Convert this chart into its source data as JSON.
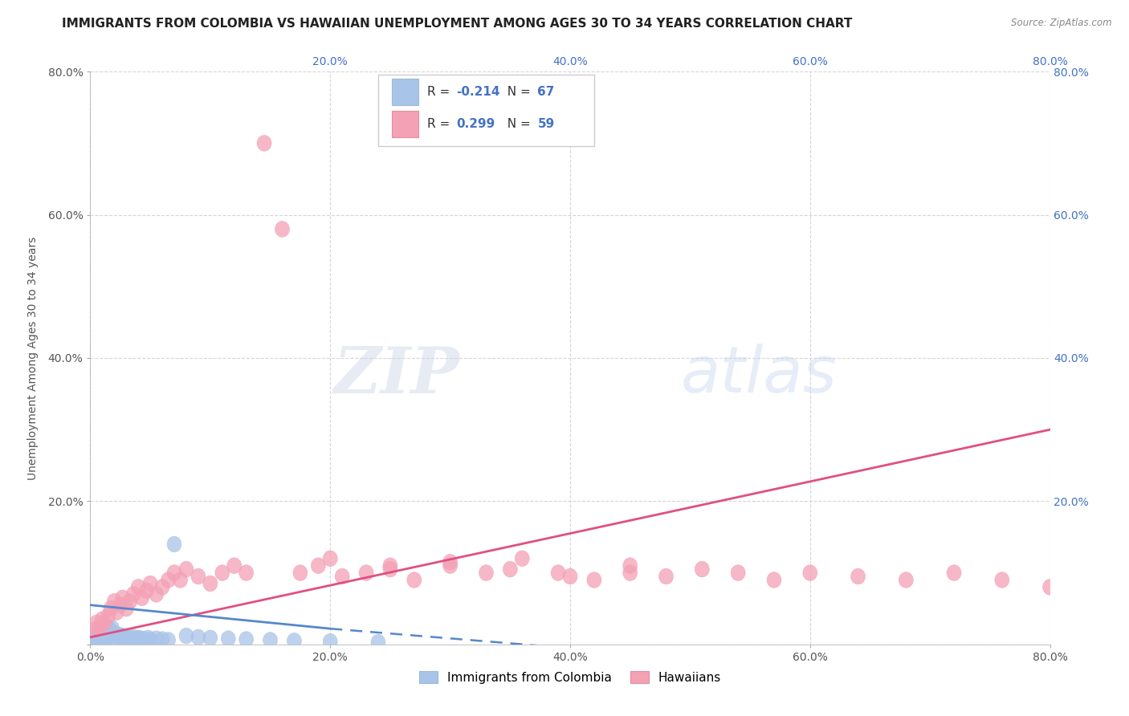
{
  "title": "IMMIGRANTS FROM COLOMBIA VS HAWAIIAN UNEMPLOYMENT AMONG AGES 30 TO 34 YEARS CORRELATION CHART",
  "source": "Source: ZipAtlas.com",
  "ylabel": "Unemployment Among Ages 30 to 34 years",
  "xlim": [
    0,
    0.8
  ],
  "ylim": [
    0,
    0.8
  ],
  "xticks": [
    0.0,
    0.2,
    0.4,
    0.6,
    0.8
  ],
  "yticks": [
    0.0,
    0.2,
    0.4,
    0.6,
    0.8
  ],
  "xticklabels": [
    "0.0%",
    "20.0%",
    "40.0%",
    "60.0%",
    "80.0%"
  ],
  "yticklabels": [
    "",
    "20.0%",
    "40.0%",
    "60.0%",
    "80.0%"
  ],
  "right_yticklabels": [
    "",
    "20.0%",
    "40.0%",
    "60.0%",
    "80.0%"
  ],
  "top_xticklabels": [
    "",
    "20.0%",
    "40.0%",
    "60.0%",
    "80.0%"
  ],
  "legend_labels": [
    "Immigrants from Colombia",
    "Hawaiians"
  ],
  "R1": -0.214,
  "N1": 67,
  "R2": 0.299,
  "N2": 59,
  "color1": "#a8c4e8",
  "color2": "#f4a0b5",
  "line_color1": "#5588cc",
  "line_color2": "#e05080",
  "watermark_zip": "ZIP",
  "watermark_atlas": "atlas",
  "background_color": "#ffffff",
  "grid_color": "#cccccc",
  "title_fontsize": 11,
  "axis_label_fontsize": 10,
  "tick_fontsize": 10,
  "blue_tick_color": "#4472c4",
  "scatter1_x": [
    0.002,
    0.003,
    0.004,
    0.005,
    0.005,
    0.006,
    0.006,
    0.007,
    0.007,
    0.008,
    0.008,
    0.009,
    0.009,
    0.01,
    0.01,
    0.01,
    0.011,
    0.011,
    0.012,
    0.012,
    0.013,
    0.013,
    0.014,
    0.014,
    0.015,
    0.015,
    0.016,
    0.016,
    0.017,
    0.017,
    0.018,
    0.018,
    0.019,
    0.02,
    0.02,
    0.021,
    0.022,
    0.023,
    0.024,
    0.025,
    0.026,
    0.027,
    0.028,
    0.029,
    0.03,
    0.032,
    0.034,
    0.036,
    0.038,
    0.04,
    0.042,
    0.045,
    0.048,
    0.05,
    0.055,
    0.06,
    0.065,
    0.07,
    0.08,
    0.09,
    0.1,
    0.115,
    0.13,
    0.15,
    0.17,
    0.2,
    0.24
  ],
  "scatter1_y": [
    0.005,
    0.008,
    0.006,
    0.01,
    0.012,
    0.007,
    0.015,
    0.009,
    0.013,
    0.011,
    0.016,
    0.008,
    0.014,
    0.01,
    0.012,
    0.018,
    0.009,
    0.015,
    0.011,
    0.017,
    0.013,
    0.019,
    0.01,
    0.016,
    0.012,
    0.02,
    0.014,
    0.022,
    0.011,
    0.018,
    0.015,
    0.023,
    0.013,
    0.01,
    0.016,
    0.012,
    0.014,
    0.011,
    0.013,
    0.01,
    0.012,
    0.009,
    0.011,
    0.008,
    0.01,
    0.009,
    0.008,
    0.01,
    0.007,
    0.009,
    0.008,
    0.007,
    0.009,
    0.006,
    0.008,
    0.007,
    0.006,
    0.14,
    0.012,
    0.01,
    0.009,
    0.008,
    0.007,
    0.006,
    0.005,
    0.004,
    0.003
  ],
  "scatter2_x": [
    0.003,
    0.005,
    0.008,
    0.01,
    0.012,
    0.015,
    0.017,
    0.02,
    0.022,
    0.025,
    0.027,
    0.03,
    0.033,
    0.036,
    0.04,
    0.043,
    0.047,
    0.05,
    0.055,
    0.06,
    0.065,
    0.07,
    0.075,
    0.08,
    0.09,
    0.1,
    0.11,
    0.12,
    0.13,
    0.145,
    0.16,
    0.175,
    0.19,
    0.21,
    0.23,
    0.25,
    0.27,
    0.3,
    0.33,
    0.36,
    0.39,
    0.42,
    0.45,
    0.48,
    0.51,
    0.54,
    0.57,
    0.6,
    0.64,
    0.68,
    0.72,
    0.76,
    0.8,
    0.2,
    0.25,
    0.3,
    0.35,
    0.4,
    0.45
  ],
  "scatter2_y": [
    0.02,
    0.03,
    0.025,
    0.035,
    0.03,
    0.04,
    0.05,
    0.06,
    0.045,
    0.055,
    0.065,
    0.05,
    0.06,
    0.07,
    0.08,
    0.065,
    0.075,
    0.085,
    0.07,
    0.08,
    0.09,
    0.1,
    0.09,
    0.105,
    0.095,
    0.085,
    0.1,
    0.11,
    0.1,
    0.7,
    0.58,
    0.1,
    0.11,
    0.095,
    0.1,
    0.105,
    0.09,
    0.11,
    0.1,
    0.12,
    0.1,
    0.09,
    0.11,
    0.095,
    0.105,
    0.1,
    0.09,
    0.1,
    0.095,
    0.09,
    0.1,
    0.09,
    0.08,
    0.12,
    0.11,
    0.115,
    0.105,
    0.095,
    0.1
  ]
}
